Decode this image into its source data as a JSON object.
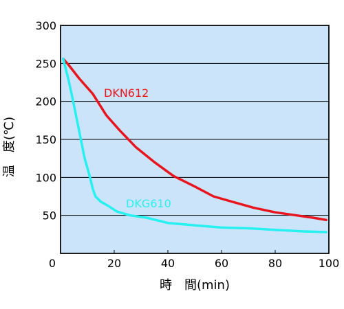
{
  "chart_data": {
    "type": "line",
    "title": "",
    "xlabel": "時　間(min)",
    "ylabel": "温　度(℃)",
    "xlim": [
      0,
      100
    ],
    "ylim": [
      0,
      300
    ],
    "x_ticks": [
      0,
      20,
      40,
      60,
      80,
      100
    ],
    "y_ticks": [
      50,
      100,
      150,
      200,
      250,
      300
    ],
    "x_tick_labels": [
      "0",
      "20",
      "40",
      "60",
      "80",
      "100"
    ],
    "y_tick_labels": [
      "50",
      "100",
      "150",
      "200",
      "250",
      "300"
    ],
    "grid": "horizontal",
    "plot_background": "#cce4fa",
    "series": [
      {
        "name": "DKN612",
        "color": "#e8141e",
        "points": [
          [
            1,
            256
          ],
          [
            3,
            248
          ],
          [
            7,
            230
          ],
          [
            12,
            210
          ],
          [
            17,
            182
          ],
          [
            22,
            162
          ],
          [
            28,
            140
          ],
          [
            35,
            120
          ],
          [
            42,
            102
          ],
          [
            50,
            88
          ],
          [
            57,
            75
          ],
          [
            65,
            67
          ],
          [
            72,
            60
          ],
          [
            80,
            54
          ],
          [
            88,
            50
          ],
          [
            94,
            47
          ],
          [
            99,
            44
          ]
        ]
      },
      {
        "name": "DKG610",
        "color": "#27f0f0",
        "points": [
          [
            1,
            256
          ],
          [
            3,
            228
          ],
          [
            5,
            195
          ],
          [
            7,
            160
          ],
          [
            9,
            125
          ],
          [
            11,
            100
          ],
          [
            12,
            85
          ],
          [
            13,
            75
          ],
          [
            15,
            68
          ],
          [
            18,
            62
          ],
          [
            21,
            55
          ],
          [
            26,
            50
          ],
          [
            32,
            47
          ],
          [
            40,
            40
          ],
          [
            50,
            37
          ],
          [
            60,
            34
          ],
          [
            70,
            33
          ],
          [
            80,
            31
          ],
          [
            90,
            29
          ],
          [
            99,
            28
          ]
        ]
      }
    ]
  }
}
